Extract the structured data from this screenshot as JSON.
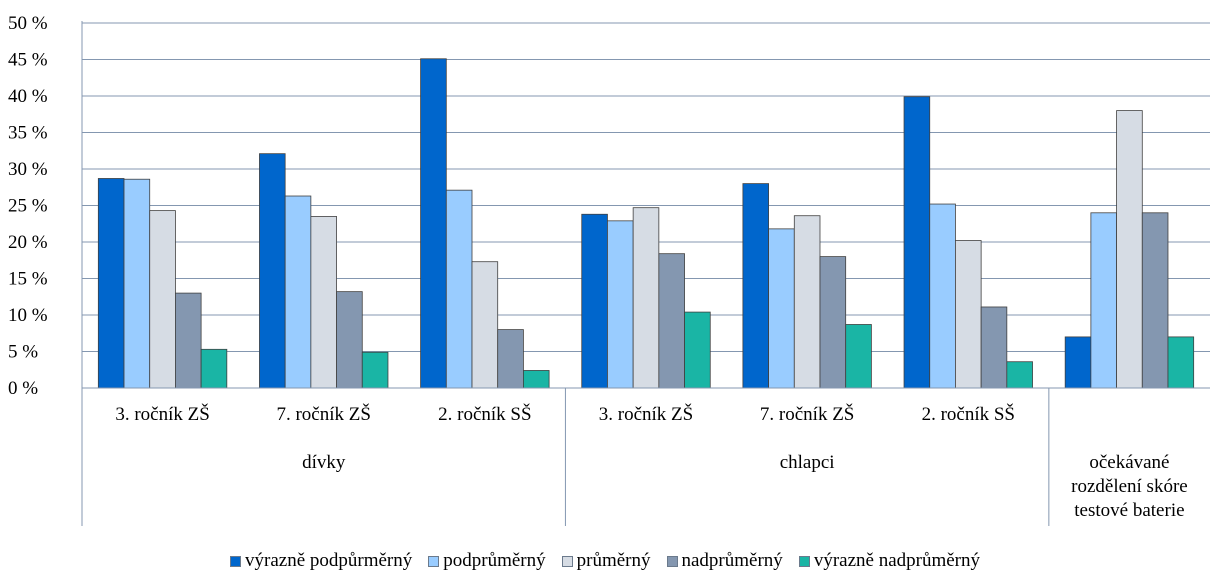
{
  "chart_data": {
    "type": "bar",
    "ylim": [
      0,
      50
    ],
    "y_ticks": [
      "0 %",
      "5 %",
      "10 %",
      "15 %",
      "20 %",
      "25 %",
      "30 %",
      "35 %",
      "40 %",
      "45 %",
      "50 %"
    ],
    "grid": true,
    "legend_position": "bottom",
    "categories": [
      "3. ročník ZŠ",
      "7. ročník ZŠ",
      "2. ročník SŠ",
      "3. ročník ZŠ",
      "7. ročník ZŠ",
      "2. ročník SŠ",
      ""
    ],
    "groups": [
      {
        "label": "dívky",
        "span": 3
      },
      {
        "label": "chlapci",
        "span": 3
      },
      {
        "label": "očekávané rozdělení skóre testové baterie",
        "lines": [
          "očekávané",
          "rozdělení skóre",
          "testové baterie"
        ],
        "span": 1
      }
    ],
    "series": [
      {
        "name": "výrazně podpůrměrný",
        "color": "#0066cc",
        "values": [
          28.7,
          32.1,
          45.1,
          23.8,
          28.0,
          39.9,
          7.0
        ]
      },
      {
        "name": "podprůměrný",
        "color": "#99ccff",
        "values": [
          28.6,
          26.3,
          27.1,
          22.9,
          21.8,
          25.2,
          24.0
        ]
      },
      {
        "name": "průměrný",
        "color": "#d6dce4",
        "values": [
          24.3,
          23.5,
          17.3,
          24.7,
          23.6,
          20.2,
          38.0
        ]
      },
      {
        "name": "nadprůměrný",
        "color": "#8497b0",
        "values": [
          13.0,
          13.2,
          8.0,
          18.4,
          18.0,
          11.1,
          24.0
        ]
      },
      {
        "name": "výrazně nadprůměrný",
        "color": "#1ab5a5",
        "values": [
          5.3,
          4.9,
          2.4,
          10.4,
          8.7,
          3.6,
          7.0
        ]
      }
    ]
  }
}
